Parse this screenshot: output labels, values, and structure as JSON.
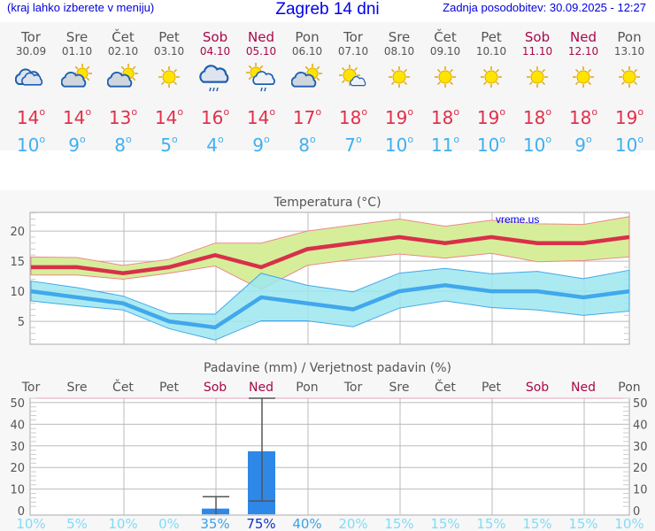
{
  "header": {
    "hint": "(kraj lahko izberete v meniju)",
    "title": "Zagreb 14 dni",
    "updated": "Zadnja posodobitev: 30.09.2025 - 12:27"
  },
  "colors": {
    "weekend": "#a8084a",
    "max": "#e0304a",
    "min": "#40b0f0",
    "link": "#0000ee"
  },
  "days": [
    {
      "name": "Tor",
      "date": "30.09",
      "icon": "cloudy-icon",
      "max": "14",
      "min": "10",
      "weekend": false,
      "prob": "10%"
    },
    {
      "name": "Sre",
      "date": "01.10",
      "icon": "partly-cloudy-icon",
      "max": "14",
      "min": "9",
      "weekend": false,
      "prob": "5%"
    },
    {
      "name": "Čet",
      "date": "02.10",
      "icon": "partly-cloudy-icon",
      "max": "13",
      "min": "8",
      "weekend": false,
      "prob": "10%"
    },
    {
      "name": "Pet",
      "date": "03.10",
      "icon": "sun-icon",
      "max": "14",
      "min": "5",
      "weekend": false,
      "prob": "0%"
    },
    {
      "name": "Sob",
      "date": "04.10",
      "icon": "rain-cloud-icon",
      "max": "16",
      "min": "4",
      "weekend": true,
      "prob": "35%"
    },
    {
      "name": "Ned",
      "date": "05.10",
      "icon": "sun-rain-cloud-icon",
      "max": "14",
      "min": "9",
      "weekend": true,
      "prob": "75%"
    },
    {
      "name": "Pon",
      "date": "06.10",
      "icon": "partly-cloudy-icon",
      "max": "17",
      "min": "8",
      "weekend": false,
      "prob": "40%"
    },
    {
      "name": "Tor",
      "date": "07.10",
      "icon": "mostly-sunny-icon",
      "max": "18",
      "min": "7",
      "weekend": false,
      "prob": "20%"
    },
    {
      "name": "Sre",
      "date": "08.10",
      "icon": "sun-icon",
      "max": "19",
      "min": "10",
      "weekend": false,
      "prob": "15%"
    },
    {
      "name": "Čet",
      "date": "09.10",
      "icon": "sun-icon",
      "max": "18",
      "min": "11",
      "weekend": false,
      "prob": "15%"
    },
    {
      "name": "Pet",
      "date": "10.10",
      "icon": "sun-icon",
      "max": "19",
      "min": "10",
      "weekend": false,
      "prob": "15%"
    },
    {
      "name": "Sob",
      "date": "11.10",
      "icon": "sun-icon",
      "max": "18",
      "min": "10",
      "weekend": true,
      "prob": "15%"
    },
    {
      "name": "Ned",
      "date": "12.10",
      "icon": "sun-icon",
      "max": "18",
      "min": "9",
      "weekend": true,
      "prob": "15%"
    },
    {
      "name": "Pon",
      "date": "13.10",
      "icon": "sun-icon",
      "max": "19",
      "min": "10",
      "weekend": false,
      "prob": "10%"
    }
  ],
  "chart_data": [
    {
      "type": "line",
      "title": "Temperatura (°C)",
      "watermark": "vreme.us",
      "categories": [
        "30.09",
        "01.10",
        "02.10",
        "03.10",
        "04.10",
        "05.10",
        "06.10",
        "07.10",
        "08.10",
        "09.10",
        "10.10",
        "11.10",
        "12.10",
        "13.10"
      ],
      "ylim": [
        1.2,
        23.1
      ],
      "yticks": [
        5,
        10,
        15,
        20
      ],
      "grid": true,
      "series": [
        {
          "key": "max",
          "values": [
            14,
            14,
            13,
            14,
            16,
            14,
            17,
            18,
            19,
            18,
            19,
            18,
            18,
            19
          ],
          "color": "#d8304a",
          "band_upper": [
            15.7,
            15.6,
            14.3,
            15.3,
            18,
            18,
            20,
            21,
            22,
            20.8,
            21.8,
            21.2,
            21.1,
            22.4
          ],
          "band_lower": [
            12.7,
            12.7,
            12,
            13,
            14.2,
            10.3,
            14.3,
            15.3,
            16.2,
            15.5,
            16.3,
            14.9,
            15.1,
            15.7
          ],
          "band_color": "#d6ee9a"
        },
        {
          "key": "min",
          "values": [
            10,
            9,
            8,
            5,
            4,
            9,
            8,
            7,
            10,
            11,
            10,
            10,
            9,
            10
          ],
          "color": "#40a8ec",
          "band_upper": [
            11.7,
            10.6,
            9.2,
            6.3,
            6.2,
            13,
            11,
            9.9,
            13,
            13.8,
            12.9,
            13.3,
            12.1,
            13.5
          ],
          "band_lower": [
            8.4,
            7.6,
            6.9,
            3.8,
            1.9,
            5.1,
            5.1,
            4.1,
            7.2,
            8.4,
            7.3,
            6.9,
            6,
            6.7
          ],
          "band_color": "#9ee6f0"
        }
      ]
    },
    {
      "type": "bar",
      "title": "Padavine (mm) / Verjetnost padavin (%)",
      "ylim": [
        -2,
        52
      ],
      "yticks": [
        0,
        10,
        20,
        30,
        40,
        50
      ],
      "grid": true,
      "values": [
        0,
        0,
        0,
        0,
        1,
        27.5,
        0,
        0,
        0,
        0,
        0,
        0,
        0,
        0
      ],
      "err_low": [
        null,
        null,
        null,
        null,
        0,
        4.5,
        null,
        null,
        null,
        null,
        null,
        null,
        null,
        null
      ],
      "err_high": [
        null,
        null,
        null,
        null,
        6.5,
        52,
        null,
        null,
        null,
        null,
        null,
        null,
        null,
        null
      ],
      "probability": [
        10,
        5,
        10,
        0,
        35,
        75,
        40,
        20,
        15,
        15,
        15,
        15,
        15,
        10
      ],
      "bar_color": "#2e88e8"
    }
  ]
}
